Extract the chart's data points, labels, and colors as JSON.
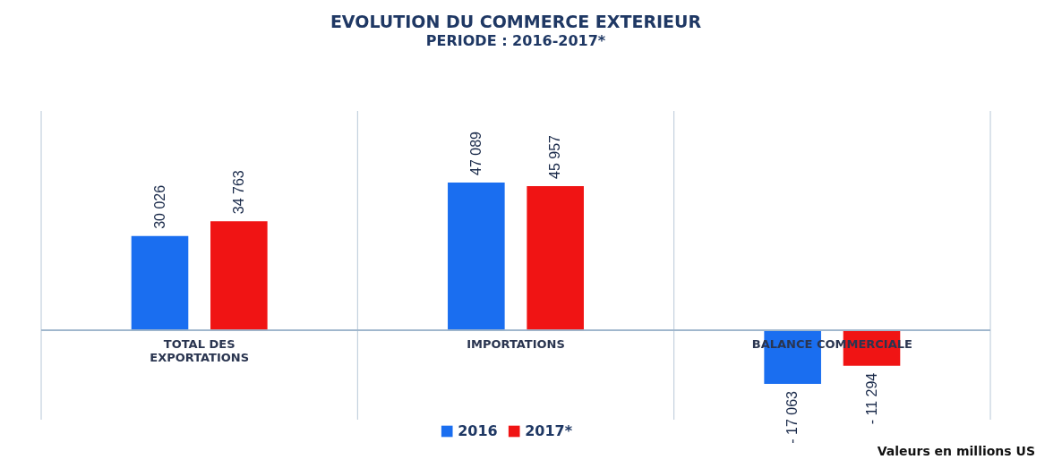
{
  "chart_data": {
    "type": "bar",
    "title": "EVOLUTION DU COMMERCE EXTERIEUR",
    "subtitle": "PERIODE : 2016-2017*",
    "categories": [
      "TOTAL DES EXPORTATIONS",
      "IMPORTATIONS",
      "BALANCE COMMERCIALE"
    ],
    "series": [
      {
        "name": "2016",
        "color": "#1a6ef0",
        "values": [
          30026,
          47089,
          -17063
        ],
        "value_labels": [
          "30 026",
          "47 089",
          "- 17 063"
        ]
      },
      {
        "name": "2017*",
        "color": "#f01414",
        "values": [
          34763,
          45957,
          -11294
        ],
        "value_labels": [
          "34 763",
          "45 957",
          "- 11 294"
        ]
      }
    ],
    "grid": "x",
    "legend": "bottom",
    "annotations": [
      "Valeurs en millions US"
    ]
  }
}
